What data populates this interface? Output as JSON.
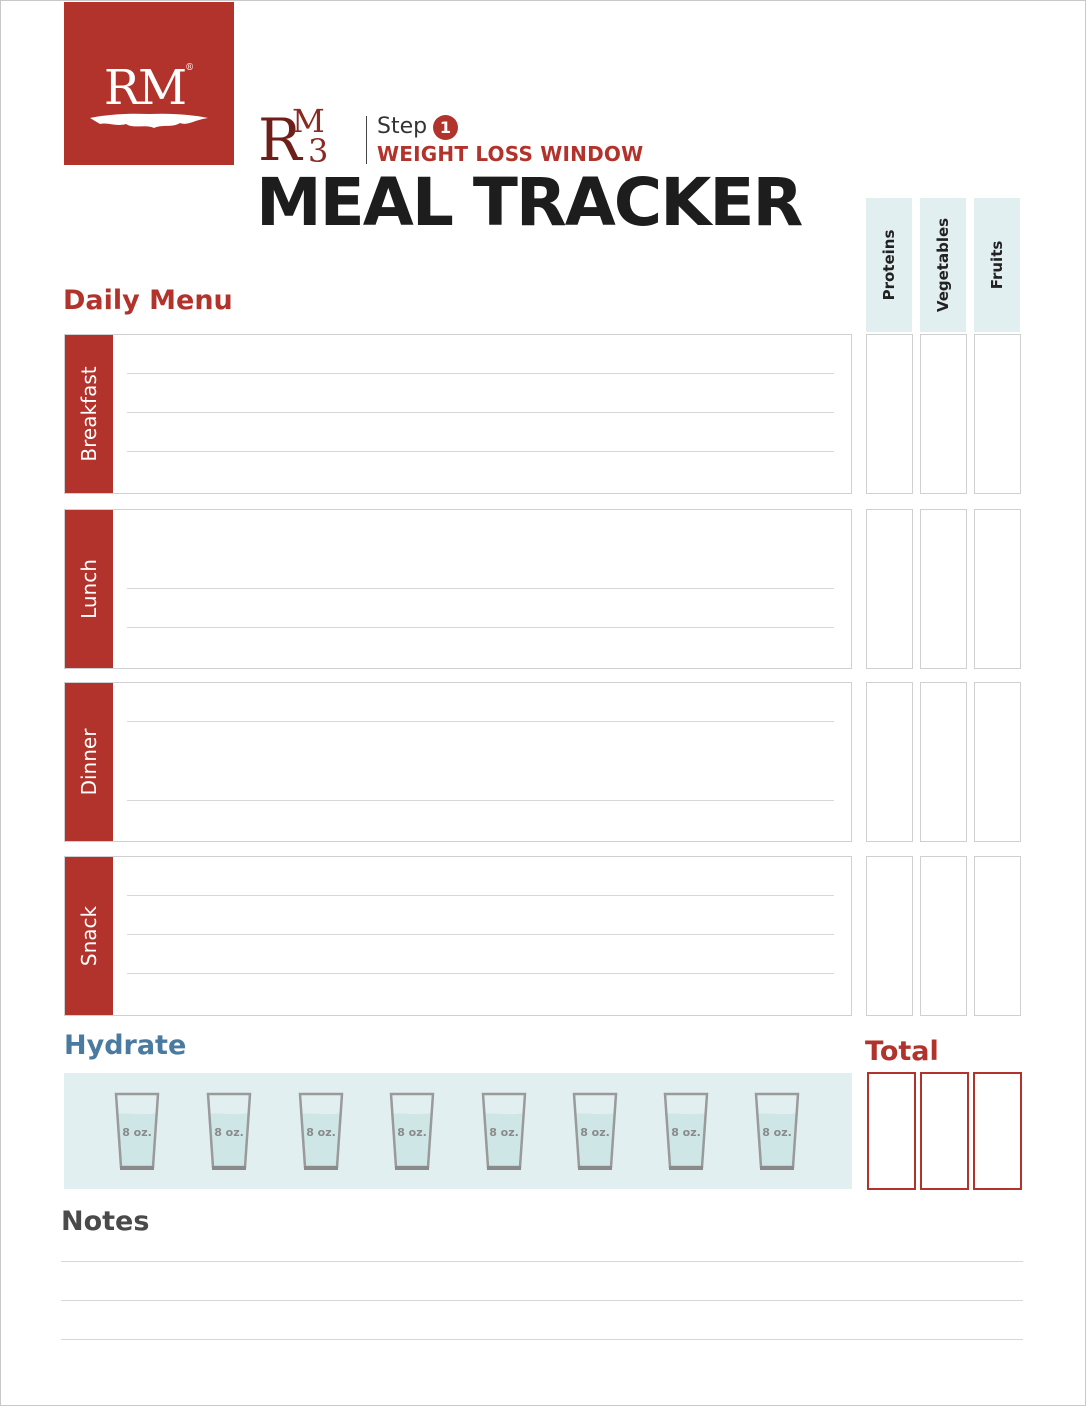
{
  "brand": {
    "badge_text": "RM",
    "badge_mark": "®",
    "sub_logo_text": "RM3",
    "colors": {
      "accent": "#b2332b",
      "light_blue": "#e2eff1",
      "hydrate_blue": "#4a7aa0"
    }
  },
  "header": {
    "step_label": "Step",
    "step_number": "1",
    "subtitle": "WEIGHT LOSS WINDOW",
    "title": "MEAL TRACKER"
  },
  "columns": [
    "Proteins",
    "Vegetables",
    "Fruits"
  ],
  "daily_menu": {
    "title": "Daily Menu",
    "meals": [
      {
        "label": "Breakfast"
      },
      {
        "label": "Lunch"
      },
      {
        "label": "Dinner"
      },
      {
        "label": "Snack"
      }
    ]
  },
  "hydrate": {
    "title": "Hydrate",
    "glasses": [
      "8 oz.",
      "8 oz.",
      "8 oz.",
      "8 oz.",
      "8 oz.",
      "8 oz.",
      "8 oz.",
      "8 oz."
    ]
  },
  "total": {
    "title": "Total"
  },
  "notes": {
    "title": "Notes"
  }
}
